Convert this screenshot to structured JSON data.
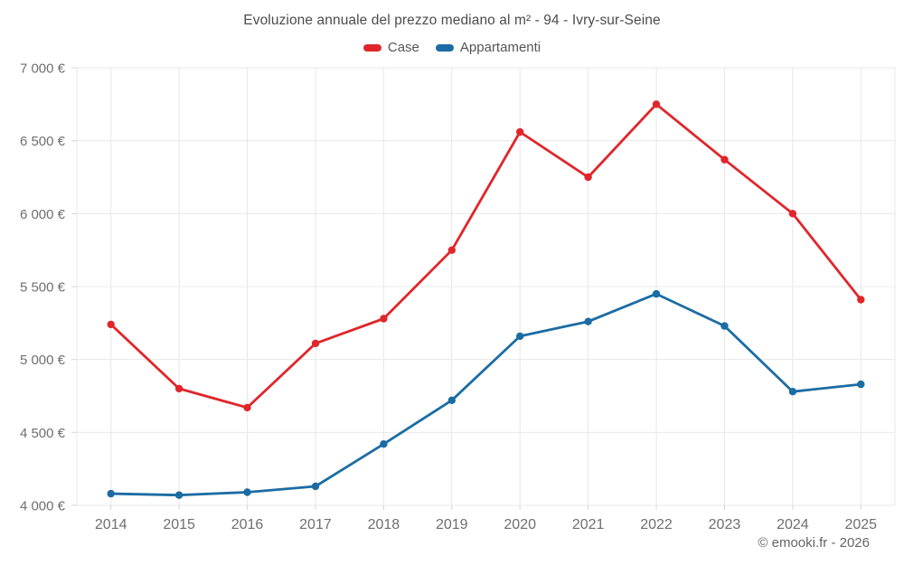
{
  "chart_data": {
    "type": "line",
    "title": "Evoluzione annuale del prezzo mediano al m² - 94 - Ivry-sur-Seine",
    "x": [
      "2014",
      "2015",
      "2016",
      "2017",
      "2018",
      "2019",
      "2020",
      "2021",
      "2022",
      "2023",
      "2024",
      "2025"
    ],
    "series": [
      {
        "id": "case",
        "name": "Case",
        "color": "#e0262b",
        "values": [
          5240,
          4800,
          4670,
          5110,
          5280,
          5750,
          6560,
          6250,
          6750,
          6370,
          6000,
          5410
        ]
      },
      {
        "id": "appartamenti",
        "name": "Appartamenti",
        "color": "#1b6ca3",
        "values": [
          4080,
          4070,
          4090,
          4130,
          4420,
          4720,
          5160,
          5260,
          5450,
          5230,
          4780,
          4830
        ]
      }
    ],
    "ylim": [
      4000,
      7000
    ],
    "ytick_step": 500,
    "yticks": [
      {
        "value": 7000,
        "label": "7 000 €"
      },
      {
        "value": 6500,
        "label": "6 500 €"
      },
      {
        "value": 6000,
        "label": "6 000 €"
      },
      {
        "value": 5500,
        "label": "5 500 €"
      },
      {
        "value": 5000,
        "label": "5 000 €"
      },
      {
        "value": 4500,
        "label": "4 500 €"
      },
      {
        "value": 4000,
        "label": "4 000 €"
      }
    ],
    "grid": true,
    "legend_position": "top",
    "ylabel": "",
    "xlabel": ""
  },
  "footer": {
    "copyright": "© emooki.fr - 2026"
  },
  "colors": {
    "background": "#ffffff",
    "gridline": "#e8e8e8",
    "tick": "#d5d5d5",
    "axis_text": "#6f6f6f",
    "title_text": "#4c4c4c",
    "legend_text": "#555555",
    "footer_text": "#666666"
  }
}
